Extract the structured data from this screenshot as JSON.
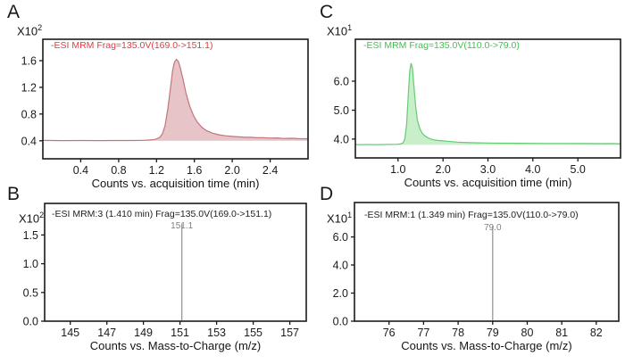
{
  "figure": {
    "background": "#ffffff",
    "frame_color": "#1a1a1a"
  },
  "chart_data": [
    {
      "type": "area",
      "panel_label": "A",
      "scale_base": "X10",
      "scale_exp": "2",
      "header": "-ESI MRM Frag=135.0V(169.0->151.1)",
      "header_color": "#e23b3f",
      "line_color": "#c3757c",
      "fill_color": "#e7c4c7",
      "xlabel": "Counts vs. acquisition time (min)",
      "x_range": [
        0,
        2.8
      ],
      "y_range": [
        0.13,
        1.92
      ],
      "x_ticks": [
        0.4,
        0.8,
        1.2,
        1.6,
        2.0,
        2.4
      ],
      "x_tick_labels": [
        "0.4",
        "0.8",
        "1.2",
        "1.6",
        "2.0",
        "2.4"
      ],
      "y_ticks": [
        0.4,
        0.8,
        1.2,
        1.6
      ],
      "y_tick_labels": [
        "0.4",
        "0.8",
        "1.2",
        "1.6"
      ],
      "baseline": 0.4,
      "points": [
        [
          0.0,
          0.405
        ],
        [
          0.2,
          0.403
        ],
        [
          0.4,
          0.404
        ],
        [
          0.6,
          0.403
        ],
        [
          0.8,
          0.404
        ],
        [
          0.95,
          0.404
        ],
        [
          1.05,
          0.406
        ],
        [
          1.12,
          0.41
        ],
        [
          1.18,
          0.42
        ],
        [
          1.23,
          0.445
        ],
        [
          1.26,
          0.5
        ],
        [
          1.29,
          0.62
        ],
        [
          1.32,
          0.88
        ],
        [
          1.35,
          1.22
        ],
        [
          1.37,
          1.45
        ],
        [
          1.39,
          1.58
        ],
        [
          1.41,
          1.62
        ],
        [
          1.43,
          1.59
        ],
        [
          1.45,
          1.5
        ],
        [
          1.48,
          1.32
        ],
        [
          1.51,
          1.12
        ],
        [
          1.55,
          0.92
        ],
        [
          1.59,
          0.78
        ],
        [
          1.63,
          0.68
        ],
        [
          1.68,
          0.6
        ],
        [
          1.73,
          0.55
        ],
        [
          1.79,
          0.515
        ],
        [
          1.86,
          0.49
        ],
        [
          1.93,
          0.475
        ],
        [
          2.0,
          0.465
        ],
        [
          2.07,
          0.458
        ],
        [
          2.14,
          0.452
        ],
        [
          2.2,
          0.452
        ],
        [
          2.26,
          0.445
        ],
        [
          2.33,
          0.447
        ],
        [
          2.4,
          0.44
        ],
        [
          2.47,
          0.442
        ],
        [
          2.54,
          0.435
        ],
        [
          2.62,
          0.437
        ],
        [
          2.7,
          0.432
        ],
        [
          2.8,
          0.43
        ]
      ]
    },
    {
      "type": "stick",
      "panel_label": "B",
      "scale_base": "X10",
      "scale_exp": "2",
      "header": "-ESI MRM:3 (1.410 min) Frag=135.0V(169.0->151.1)",
      "header_color": "#222222",
      "stick_color": "#8f8f8f",
      "label_color": "#7f7f7f",
      "xlabel": "Counts vs. Mass-to-Charge (m/z)",
      "x_range": [
        143.6,
        157.9
      ],
      "y_range": [
        0,
        2.05
      ],
      "x_ticks": [
        145,
        147,
        149,
        151,
        153,
        155,
        157
      ],
      "x_tick_labels": [
        "145",
        "147",
        "149",
        "151",
        "153",
        "155",
        "157"
      ],
      "y_ticks": [
        0.0,
        0.5,
        1.0,
        1.5
      ],
      "y_tick_labels": [
        "0.0",
        "0.5",
        "1.0",
        "1.5"
      ],
      "stick": {
        "x": 151.1,
        "height": 1.69,
        "label": "151.1"
      }
    },
    {
      "type": "area",
      "panel_label": "C",
      "scale_base": "X10",
      "scale_exp": "1",
      "header": "-ESI MRM Frag=135.0V(110.0->79.0)",
      "header_color": "#3fc24f",
      "line_color": "#67cb74",
      "fill_color": "#c9efca",
      "xlabel": "Counts vs. acquisition time (min)",
      "x_range": [
        0.05,
        5.95
      ],
      "y_range": [
        3.35,
        7.45
      ],
      "x_ticks": [
        1.0,
        2.0,
        3.0,
        4.0,
        5.0
      ],
      "x_tick_labels": [
        "1.0",
        "2.0",
        "3.0",
        "4.0",
        "5.0"
      ],
      "y_ticks": [
        4.0,
        5.0,
        6.0
      ],
      "y_tick_labels": [
        "4.0",
        "5.0",
        "6.0"
      ],
      "baseline": 3.8,
      "points": [
        [
          0.05,
          3.81
        ],
        [
          0.3,
          3.812
        ],
        [
          0.55,
          3.81
        ],
        [
          0.8,
          3.815
        ],
        [
          0.95,
          3.82
        ],
        [
          1.05,
          3.83
        ],
        [
          1.11,
          3.87
        ],
        [
          1.15,
          4.0
        ],
        [
          1.19,
          4.5
        ],
        [
          1.23,
          5.6
        ],
        [
          1.26,
          6.35
        ],
        [
          1.29,
          6.62
        ],
        [
          1.32,
          6.45
        ],
        [
          1.35,
          5.9
        ],
        [
          1.39,
          5.15
        ],
        [
          1.43,
          4.65
        ],
        [
          1.48,
          4.38
        ],
        [
          1.53,
          4.22
        ],
        [
          1.59,
          4.12
        ],
        [
          1.66,
          4.05
        ],
        [
          1.73,
          4.0
        ],
        [
          1.81,
          3.97
        ],
        [
          1.9,
          3.95
        ],
        [
          2.0,
          3.94
        ],
        [
          2.1,
          3.925
        ],
        [
          2.2,
          3.91
        ],
        [
          2.32,
          3.895
        ],
        [
          2.45,
          3.885
        ],
        [
          2.6,
          3.878
        ],
        [
          2.8,
          3.87
        ],
        [
          3.0,
          3.865
        ],
        [
          3.25,
          3.86
        ],
        [
          3.5,
          3.858
        ],
        [
          3.75,
          3.855
        ],
        [
          4.0,
          3.853
        ],
        [
          4.25,
          3.85
        ],
        [
          4.5,
          3.85
        ],
        [
          4.75,
          3.848
        ],
        [
          5.0,
          3.845
        ],
        [
          5.25,
          3.845
        ],
        [
          5.5,
          3.843
        ],
        [
          5.72,
          3.845
        ],
        [
          5.95,
          3.84
        ]
      ]
    },
    {
      "type": "stick",
      "panel_label": "D",
      "scale_base": "X10",
      "scale_exp": "1",
      "header": "-ESI MRM:1 (1.349 min) Frag=135.0V(110.0->79.0)",
      "header_color": "#222222",
      "stick_color": "#8f8f8f",
      "label_color": "#7f7f7f",
      "xlabel": "Counts vs. Mass-to-Charge (m/z)",
      "x_range": [
        75.0,
        82.65
      ],
      "x_ticks": [
        76,
        77,
        78,
        79,
        80,
        81,
        82
      ],
      "x_tick_labels": [
        "76",
        "77",
        "78",
        "79",
        "80",
        "81",
        "82"
      ],
      "y_range": [
        0,
        8.45
      ],
      "y_ticks": [
        0.0,
        2.0,
        4.0,
        6.0
      ],
      "y_tick_labels": [
        "0.0",
        "2.0",
        "4.0",
        "6.0"
      ],
      "stick": {
        "x": 79.0,
        "height": 6.8,
        "label": "79.0"
      }
    }
  ]
}
